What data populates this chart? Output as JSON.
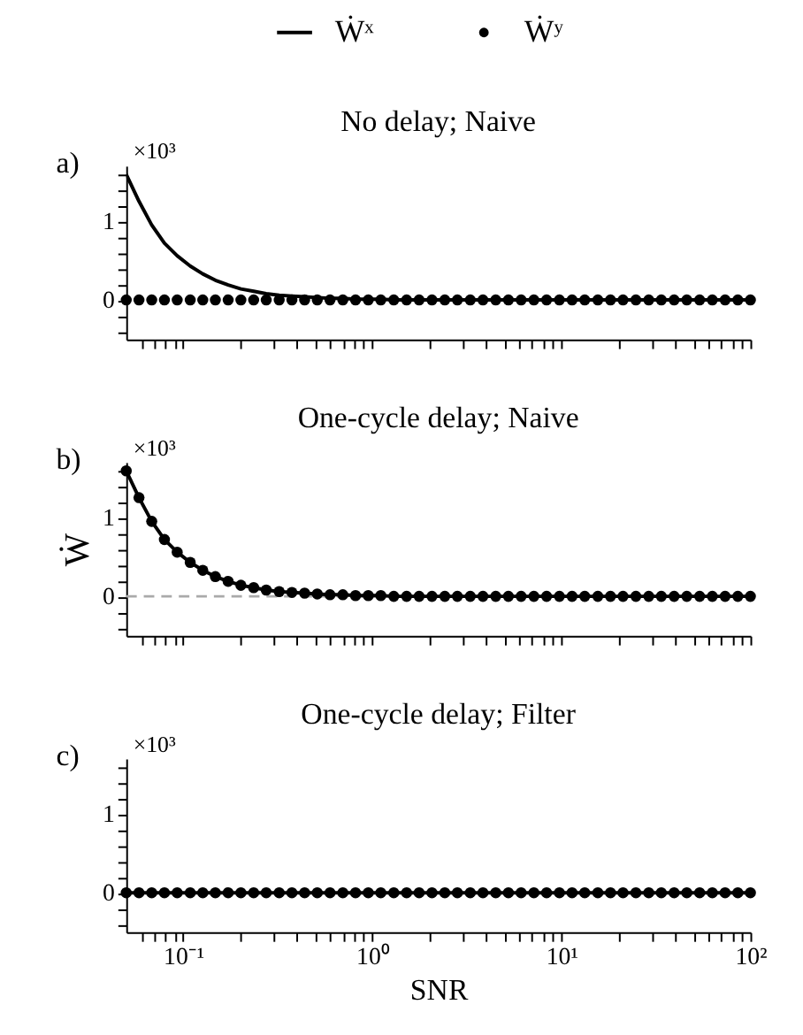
{
  "chart_data": [
    {
      "type": "line",
      "title": "No delay; Naive",
      "legend": "top",
      "log": "x",
      "tick_labels": "y",
      "annotations": [
        "a)",
        "×10³"
      ],
      "x": [
        0.05,
        0.0584,
        0.0682,
        0.0796,
        0.093,
        0.109,
        0.127,
        0.148,
        0.173,
        0.202,
        0.236,
        0.275,
        0.322,
        0.376,
        0.439,
        0.512,
        0.598,
        0.699,
        0.816,
        0.953,
        1.11,
        1.3,
        1.52,
        1.77,
        2.07,
        2.42,
        2.82,
        3.3,
        3.85,
        4.5,
        5.25,
        6.13,
        7.16,
        8.36,
        9.77,
        11.4,
        13.3,
        15.6,
        18.2,
        21.2,
        24.8,
        29.0,
        33.8,
        39.5,
        46.1,
        53.9,
        62.9,
        73.5,
        85.8,
        100
      ],
      "series": [
        {
          "name": "Ẇˣ",
          "marker": "none",
          "color": "#000000",
          "values": [
            1.59,
            1.25,
            0.95,
            0.72,
            0.56,
            0.43,
            0.33,
            0.25,
            0.19,
            0.14,
            0.11,
            0.08,
            0.06,
            0.05,
            0.04,
            0.03,
            0.02,
            0.02,
            0.01,
            0.01,
            0.01,
            0,
            0,
            0,
            0,
            0,
            0,
            0,
            0,
            0,
            0,
            0,
            0,
            0,
            0,
            0,
            0,
            0,
            0,
            0,
            0,
            0,
            0,
            0,
            0,
            0,
            0,
            0,
            0,
            0
          ]
        },
        {
          "name": "Ẇʸ",
          "type": "scatter",
          "marker": "circle",
          "color": "#000000",
          "values": [
            0,
            0,
            0,
            0,
            0,
            0,
            0,
            0,
            0,
            0,
            0,
            0,
            0,
            0,
            0,
            0,
            0,
            0,
            0,
            0,
            0,
            0,
            0,
            0,
            0,
            0,
            0,
            0,
            0,
            0,
            0,
            0,
            0,
            0,
            0,
            0,
            0,
            0,
            0,
            0,
            0,
            0,
            0,
            0,
            0,
            0,
            0,
            0,
            0,
            0
          ]
        }
      ],
      "xlim": [
        0.05,
        100
      ],
      "ylim": [
        -0.5,
        1.7
      ],
      "xticks": [
        {
          "value": 0.06,
          "label": null
        },
        {
          "value": 0.07,
          "label": null
        },
        {
          "value": 0.08,
          "label": null
        },
        {
          "value": 0.09,
          "label": null
        },
        {
          "value": 0.1,
          "label": null
        },
        {
          "value": 0.2,
          "label": null
        },
        {
          "value": 0.3,
          "label": null
        },
        {
          "value": 0.4,
          "label": null
        },
        {
          "value": 0.5,
          "label": null
        },
        {
          "value": 0.6,
          "label": null
        },
        {
          "value": 0.7,
          "label": null
        },
        {
          "value": 0.8,
          "label": null
        },
        {
          "value": 0.9,
          "label": null
        },
        {
          "value": 1,
          "label": null
        },
        {
          "value": 2,
          "label": null
        },
        {
          "value": 3,
          "label": null
        },
        {
          "value": 4,
          "label": null
        },
        {
          "value": 5,
          "label": null
        },
        {
          "value": 6,
          "label": null
        },
        {
          "value": 7,
          "label": null
        },
        {
          "value": 8,
          "label": null
        },
        {
          "value": 9,
          "label": null
        },
        {
          "value": 10,
          "label": null
        },
        {
          "value": 20,
          "label": null
        },
        {
          "value": 30,
          "label": null
        },
        {
          "value": 40,
          "label": null
        },
        {
          "value": 50,
          "label": null
        },
        {
          "value": 60,
          "label": null
        },
        {
          "value": 70,
          "label": null
        },
        {
          "value": 80,
          "label": null
        },
        {
          "value": 90,
          "label": null
        },
        {
          "value": 100,
          "label": null
        }
      ],
      "yticks": [
        {
          "value": -0.4,
          "label": null
        },
        {
          "value": -0.2,
          "label": null
        },
        0,
        {
          "value": 0.2,
          "label": null
        },
        {
          "value": 0.4,
          "label": null
        },
        {
          "value": 0.6,
          "label": null
        },
        {
          "value": 0.8,
          "label": null
        },
        1,
        {
          "value": 1.2,
          "label": null
        },
        {
          "value": 1.4,
          "label": null
        },
        {
          "value": 1.6,
          "label": null
        }
      ]
    },
    {
      "type": "line",
      "title": "One-cycle delay; Naive",
      "ylabel": "Ẇ",
      "log": "x",
      "tick_labels": "y",
      "annotations": [
        "b)",
        "×10³"
      ],
      "x": [
        0.05,
        0.0584,
        0.0682,
        0.0796,
        0.093,
        0.109,
        0.127,
        0.148,
        0.173,
        0.202,
        0.236,
        0.275,
        0.322,
        0.376,
        0.439,
        0.512,
        0.598,
        0.699,
        0.816,
        0.953,
        1.11,
        1.3,
        1.52,
        1.77,
        2.07,
        2.42,
        2.82,
        3.3,
        3.85,
        4.5,
        5.25,
        6.13,
        7.16,
        8.36,
        9.77,
        11.4,
        13.3,
        15.6,
        18.2,
        21.2,
        24.8,
        29.0,
        33.8,
        39.5,
        46.1,
        53.9,
        62.9,
        73.5,
        85.8,
        100
      ],
      "series": [
        {
          "marker": "none",
          "color": "#000000",
          "values": [
            1.59,
            1.25,
            0.95,
            0.72,
            0.56,
            0.43,
            0.33,
            0.25,
            0.19,
            0.14,
            0.11,
            0.08,
            0.06,
            0.05,
            0.04,
            0.03,
            0.02,
            0.02,
            0.01,
            0.01,
            0.01,
            0,
            0,
            0,
            0,
            0,
            0,
            0,
            0,
            0,
            0,
            0,
            0,
            0,
            0,
            0,
            0,
            0,
            0,
            0,
            0,
            0,
            0,
            0,
            0,
            0,
            0,
            0,
            0,
            0
          ]
        },
        {
          "type": "scatter",
          "marker": "circle",
          "color": "#000000",
          "values": [
            1.59,
            1.25,
            0.95,
            0.72,
            0.56,
            0.43,
            0.33,
            0.25,
            0.19,
            0.14,
            0.11,
            0.08,
            0.06,
            0.05,
            0.04,
            0.03,
            0.02,
            0.02,
            0.01,
            0.01,
            0.01,
            0,
            0,
            0,
            0,
            0,
            0,
            0,
            0,
            0,
            0,
            0,
            0,
            0,
            0,
            0,
            0,
            0,
            0,
            0,
            0,
            0,
            0,
            0,
            0,
            0,
            0,
            0,
            0,
            0
          ]
        }
      ],
      "ref_lines": [
        {
          "axis": "y",
          "value": 0,
          "color": "#aaaaaa",
          "line_style": "dashed"
        }
      ],
      "xlim": [
        0.05,
        100
      ],
      "ylim": [
        -0.5,
        1.7
      ],
      "xticks": [
        {
          "value": 0.06,
          "label": null
        },
        {
          "value": 0.07,
          "label": null
        },
        {
          "value": 0.08,
          "label": null
        },
        {
          "value": 0.09,
          "label": null
        },
        {
          "value": 0.1,
          "label": null
        },
        {
          "value": 0.2,
          "label": null
        },
        {
          "value": 0.3,
          "label": null
        },
        {
          "value": 0.4,
          "label": null
        },
        {
          "value": 0.5,
          "label": null
        },
        {
          "value": 0.6,
          "label": null
        },
        {
          "value": 0.7,
          "label": null
        },
        {
          "value": 0.8,
          "label": null
        },
        {
          "value": 0.9,
          "label": null
        },
        {
          "value": 1,
          "label": null
        },
        {
          "value": 2,
          "label": null
        },
        {
          "value": 3,
          "label": null
        },
        {
          "value": 4,
          "label": null
        },
        {
          "value": 5,
          "label": null
        },
        {
          "value": 6,
          "label": null
        },
        {
          "value": 7,
          "label": null
        },
        {
          "value": 8,
          "label": null
        },
        {
          "value": 9,
          "label": null
        },
        {
          "value": 10,
          "label": null
        },
        {
          "value": 20,
          "label": null
        },
        {
          "value": 30,
          "label": null
        },
        {
          "value": 40,
          "label": null
        },
        {
          "value": 50,
          "label": null
        },
        {
          "value": 60,
          "label": null
        },
        {
          "value": 70,
          "label": null
        },
        {
          "value": 80,
          "label": null
        },
        {
          "value": 90,
          "label": null
        },
        {
          "value": 100,
          "label": null
        }
      ],
      "yticks": [
        {
          "value": -0.4,
          "label": null
        },
        {
          "value": -0.2,
          "label": null
        },
        0,
        {
          "value": 0.2,
          "label": null
        },
        {
          "value": 0.4,
          "label": null
        },
        {
          "value": 0.6,
          "label": null
        },
        {
          "value": 0.8,
          "label": null
        },
        1,
        {
          "value": 1.2,
          "label": null
        },
        {
          "value": 1.4,
          "label": null
        },
        {
          "value": 1.6,
          "label": null
        }
      ]
    },
    {
      "type": "line",
      "title": "One-cycle delay; Filter",
      "xlabel": "SNR",
      "log": "x",
      "annotations": [
        "c)",
        "×10³"
      ],
      "x": [
        0.05,
        0.0584,
        0.0682,
        0.0796,
        0.093,
        0.109,
        0.127,
        0.148,
        0.173,
        0.202,
        0.236,
        0.275,
        0.322,
        0.376,
        0.439,
        0.512,
        0.598,
        0.699,
        0.816,
        0.953,
        1.11,
        1.3,
        1.52,
        1.77,
        2.07,
        2.42,
        2.82,
        3.3,
        3.85,
        4.5,
        5.25,
        6.13,
        7.16,
        8.36,
        9.77,
        11.4,
        13.3,
        15.6,
        18.2,
        21.2,
        24.8,
        29.0,
        33.8,
        39.5,
        46.1,
        53.9,
        62.9,
        73.5,
        85.8,
        100
      ],
      "series": [
        {
          "marker": "none",
          "color": "#000000",
          "values": [
            0,
            0,
            0,
            0,
            0,
            0,
            0,
            0,
            0,
            0,
            0,
            0,
            0,
            0,
            0,
            0,
            0,
            0,
            0,
            0,
            0,
            0,
            0,
            0,
            0,
            0,
            0,
            0,
            0,
            0,
            0,
            0,
            0,
            0,
            0,
            0,
            0,
            0,
            0,
            0,
            0,
            0,
            0,
            0,
            0,
            0,
            0,
            0,
            0,
            0
          ]
        },
        {
          "type": "scatter",
          "marker": "circle",
          "color": "#000000",
          "values": [
            0,
            0,
            0,
            0,
            0,
            0,
            0,
            0,
            0,
            0,
            0,
            0,
            0,
            0,
            0,
            0,
            0,
            0,
            0,
            0,
            0,
            0,
            0,
            0,
            0,
            0,
            0,
            0,
            0,
            0,
            0,
            0,
            0,
            0,
            0,
            0,
            0,
            0,
            0,
            0,
            0,
            0,
            0,
            0,
            0,
            0,
            0,
            0,
            0,
            0
          ]
        }
      ],
      "xlim": [
        0.05,
        100
      ],
      "ylim": [
        -0.5,
        1.7
      ],
      "xticks": [
        {
          "value": 0.06,
          "label": null
        },
        {
          "value": 0.07,
          "label": null
        },
        {
          "value": 0.08,
          "label": null
        },
        {
          "value": 0.09,
          "label": null
        },
        {
          "value": 0.1,
          "label": "10⁻¹"
        },
        {
          "value": 0.2,
          "label": null
        },
        {
          "value": 0.3,
          "label": null
        },
        {
          "value": 0.4,
          "label": null
        },
        {
          "value": 0.5,
          "label": null
        },
        {
          "value": 0.6,
          "label": null
        },
        {
          "value": 0.7,
          "label": null
        },
        {
          "value": 0.8,
          "label": null
        },
        {
          "value": 0.9,
          "label": null
        },
        {
          "value": 1,
          "label": "10⁰"
        },
        {
          "value": 2,
          "label": null
        },
        {
          "value": 3,
          "label": null
        },
        {
          "value": 4,
          "label": null
        },
        {
          "value": 5,
          "label": null
        },
        {
          "value": 6,
          "label": null
        },
        {
          "value": 7,
          "label": null
        },
        {
          "value": 8,
          "label": null
        },
        {
          "value": 9,
          "label": null
        },
        {
          "value": 10,
          "label": "10¹"
        },
        {
          "value": 20,
          "label": null
        },
        {
          "value": 30,
          "label": null
        },
        {
          "value": 40,
          "label": null
        },
        {
          "value": 50,
          "label": null
        },
        {
          "value": 60,
          "label": null
        },
        {
          "value": 70,
          "label": null
        },
        {
          "value": 80,
          "label": null
        },
        {
          "value": 90,
          "label": null
        },
        {
          "value": 100,
          "label": "10²"
        }
      ],
      "yticks": [
        {
          "value": -0.4,
          "label": null
        },
        {
          "value": -0.2,
          "label": null
        },
        0,
        {
          "value": 0.2,
          "label": null
        },
        {
          "value": 0.4,
          "label": null
        },
        {
          "value": 0.6,
          "label": null
        },
        {
          "value": 0.8,
          "label": null
        },
        1,
        {
          "value": 1.2,
          "label": null
        },
        {
          "value": 1.4,
          "label": null
        },
        {
          "value": 1.6,
          "label": null
        }
      ]
    }
  ]
}
